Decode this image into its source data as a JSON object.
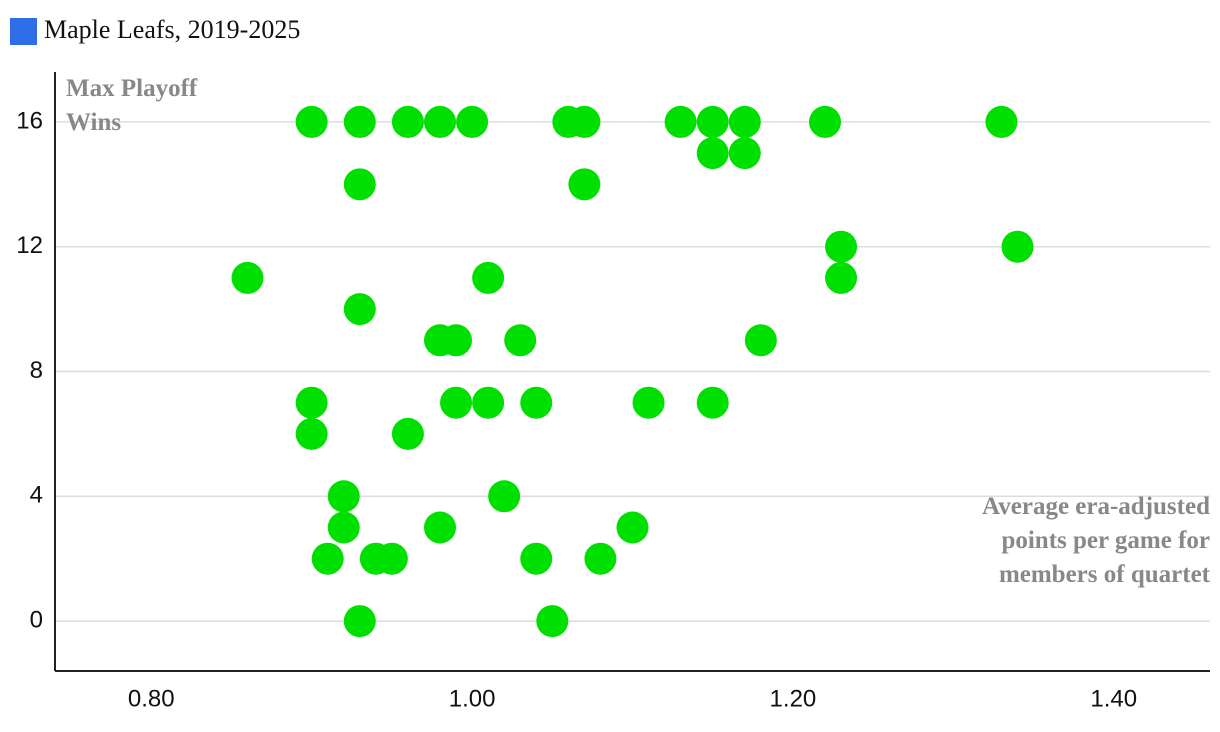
{
  "chart_data": {
    "type": "scatter",
    "title": "Maple Leafs, 2019-2025",
    "y_label": "Max Playoff Wins",
    "x_label": "Average era-adjusted points per game for members of quartet",
    "legend_marker_color": "#2f6ee6",
    "series": [
      {
        "name": "Maple Leafs, 2019-2025",
        "color": "#00e000",
        "x": [
          0.9,
          0.93,
          0.96,
          0.98,
          1.0,
          1.06,
          1.07,
          1.13,
          1.15,
          1.17,
          1.22,
          1.33,
          1.15,
          1.17,
          0.93,
          1.07,
          1.23,
          1.34,
          0.86,
          1.01,
          1.23,
          0.93,
          0.98,
          0.99,
          1.03,
          1.18,
          0.9,
          0.99,
          1.01,
          1.04,
          1.11,
          1.15,
          0.9,
          0.96,
          0.92,
          1.02,
          0.92,
          0.98,
          1.1,
          0.91,
          0.94,
          0.95,
          1.04,
          1.08,
          0.93,
          1.05
        ],
        "values": [
          16,
          16,
          16,
          16,
          16,
          16,
          16,
          16,
          16,
          16,
          16,
          16,
          15,
          15,
          14,
          14,
          12,
          12,
          11,
          11,
          11,
          10,
          9,
          9,
          9,
          9,
          7,
          7,
          7,
          7,
          7,
          7,
          6,
          6,
          4,
          4,
          3,
          3,
          3,
          2,
          2,
          2,
          2,
          2,
          0,
          0
        ]
      }
    ],
    "xlim": [
      0.74,
      1.46
    ],
    "xticks": [
      {
        "value": 0.8,
        "label": "0.80"
      },
      {
        "value": 1.0,
        "label": "1.00"
      },
      {
        "value": 1.2,
        "label": "1.20"
      },
      {
        "value": 1.4,
        "label": "1.40"
      }
    ],
    "ylim": [
      -1.6,
      17.6
    ],
    "yticks": [
      0,
      4,
      8,
      12,
      16
    ],
    "grid": true
  }
}
